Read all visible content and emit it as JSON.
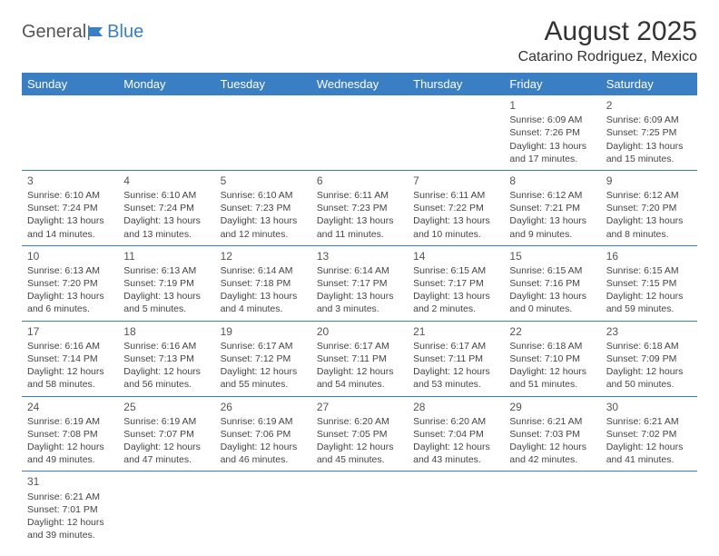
{
  "logo": {
    "text1": "General",
    "text2": "Blue"
  },
  "title": "August 2025",
  "location": "Catarino Rodriguez, Mexico",
  "colors": {
    "header_bg": "#3a7fc4",
    "header_text": "#ffffff",
    "border": "#3a7fc4",
    "body_text": "#444444",
    "background": "#ffffff"
  },
  "typography": {
    "title_fontsize": 30,
    "location_fontsize": 16,
    "header_fontsize": 13,
    "cell_fontsize": 10.5,
    "daynum_fontsize": 12
  },
  "day_headers": [
    "Sunday",
    "Monday",
    "Tuesday",
    "Wednesday",
    "Thursday",
    "Friday",
    "Saturday"
  ],
  "weeks": [
    [
      null,
      null,
      null,
      null,
      null,
      {
        "n": "1",
        "sr": "Sunrise: 6:09 AM",
        "ss": "Sunset: 7:26 PM",
        "dl": "Daylight: 13 hours and 17 minutes."
      },
      {
        "n": "2",
        "sr": "Sunrise: 6:09 AM",
        "ss": "Sunset: 7:25 PM",
        "dl": "Daylight: 13 hours and 15 minutes."
      }
    ],
    [
      {
        "n": "3",
        "sr": "Sunrise: 6:10 AM",
        "ss": "Sunset: 7:24 PM",
        "dl": "Daylight: 13 hours and 14 minutes."
      },
      {
        "n": "4",
        "sr": "Sunrise: 6:10 AM",
        "ss": "Sunset: 7:24 PM",
        "dl": "Daylight: 13 hours and 13 minutes."
      },
      {
        "n": "5",
        "sr": "Sunrise: 6:10 AM",
        "ss": "Sunset: 7:23 PM",
        "dl": "Daylight: 13 hours and 12 minutes."
      },
      {
        "n": "6",
        "sr": "Sunrise: 6:11 AM",
        "ss": "Sunset: 7:23 PM",
        "dl": "Daylight: 13 hours and 11 minutes."
      },
      {
        "n": "7",
        "sr": "Sunrise: 6:11 AM",
        "ss": "Sunset: 7:22 PM",
        "dl": "Daylight: 13 hours and 10 minutes."
      },
      {
        "n": "8",
        "sr": "Sunrise: 6:12 AM",
        "ss": "Sunset: 7:21 PM",
        "dl": "Daylight: 13 hours and 9 minutes."
      },
      {
        "n": "9",
        "sr": "Sunrise: 6:12 AM",
        "ss": "Sunset: 7:20 PM",
        "dl": "Daylight: 13 hours and 8 minutes."
      }
    ],
    [
      {
        "n": "10",
        "sr": "Sunrise: 6:13 AM",
        "ss": "Sunset: 7:20 PM",
        "dl": "Daylight: 13 hours and 6 minutes."
      },
      {
        "n": "11",
        "sr": "Sunrise: 6:13 AM",
        "ss": "Sunset: 7:19 PM",
        "dl": "Daylight: 13 hours and 5 minutes."
      },
      {
        "n": "12",
        "sr": "Sunrise: 6:14 AM",
        "ss": "Sunset: 7:18 PM",
        "dl": "Daylight: 13 hours and 4 minutes."
      },
      {
        "n": "13",
        "sr": "Sunrise: 6:14 AM",
        "ss": "Sunset: 7:17 PM",
        "dl": "Daylight: 13 hours and 3 minutes."
      },
      {
        "n": "14",
        "sr": "Sunrise: 6:15 AM",
        "ss": "Sunset: 7:17 PM",
        "dl": "Daylight: 13 hours and 2 minutes."
      },
      {
        "n": "15",
        "sr": "Sunrise: 6:15 AM",
        "ss": "Sunset: 7:16 PM",
        "dl": "Daylight: 13 hours and 0 minutes."
      },
      {
        "n": "16",
        "sr": "Sunrise: 6:15 AM",
        "ss": "Sunset: 7:15 PM",
        "dl": "Daylight: 12 hours and 59 minutes."
      }
    ],
    [
      {
        "n": "17",
        "sr": "Sunrise: 6:16 AM",
        "ss": "Sunset: 7:14 PM",
        "dl": "Daylight: 12 hours and 58 minutes."
      },
      {
        "n": "18",
        "sr": "Sunrise: 6:16 AM",
        "ss": "Sunset: 7:13 PM",
        "dl": "Daylight: 12 hours and 56 minutes."
      },
      {
        "n": "19",
        "sr": "Sunrise: 6:17 AM",
        "ss": "Sunset: 7:12 PM",
        "dl": "Daylight: 12 hours and 55 minutes."
      },
      {
        "n": "20",
        "sr": "Sunrise: 6:17 AM",
        "ss": "Sunset: 7:11 PM",
        "dl": "Daylight: 12 hours and 54 minutes."
      },
      {
        "n": "21",
        "sr": "Sunrise: 6:17 AM",
        "ss": "Sunset: 7:11 PM",
        "dl": "Daylight: 12 hours and 53 minutes."
      },
      {
        "n": "22",
        "sr": "Sunrise: 6:18 AM",
        "ss": "Sunset: 7:10 PM",
        "dl": "Daylight: 12 hours and 51 minutes."
      },
      {
        "n": "23",
        "sr": "Sunrise: 6:18 AM",
        "ss": "Sunset: 7:09 PM",
        "dl": "Daylight: 12 hours and 50 minutes."
      }
    ],
    [
      {
        "n": "24",
        "sr": "Sunrise: 6:19 AM",
        "ss": "Sunset: 7:08 PM",
        "dl": "Daylight: 12 hours and 49 minutes."
      },
      {
        "n": "25",
        "sr": "Sunrise: 6:19 AM",
        "ss": "Sunset: 7:07 PM",
        "dl": "Daylight: 12 hours and 47 minutes."
      },
      {
        "n": "26",
        "sr": "Sunrise: 6:19 AM",
        "ss": "Sunset: 7:06 PM",
        "dl": "Daylight: 12 hours and 46 minutes."
      },
      {
        "n": "27",
        "sr": "Sunrise: 6:20 AM",
        "ss": "Sunset: 7:05 PM",
        "dl": "Daylight: 12 hours and 45 minutes."
      },
      {
        "n": "28",
        "sr": "Sunrise: 6:20 AM",
        "ss": "Sunset: 7:04 PM",
        "dl": "Daylight: 12 hours and 43 minutes."
      },
      {
        "n": "29",
        "sr": "Sunrise: 6:21 AM",
        "ss": "Sunset: 7:03 PM",
        "dl": "Daylight: 12 hours and 42 minutes."
      },
      {
        "n": "30",
        "sr": "Sunrise: 6:21 AM",
        "ss": "Sunset: 7:02 PM",
        "dl": "Daylight: 12 hours and 41 minutes."
      }
    ],
    [
      {
        "n": "31",
        "sr": "Sunrise: 6:21 AM",
        "ss": "Sunset: 7:01 PM",
        "dl": "Daylight: 12 hours and 39 minutes."
      },
      null,
      null,
      null,
      null,
      null,
      null
    ]
  ]
}
